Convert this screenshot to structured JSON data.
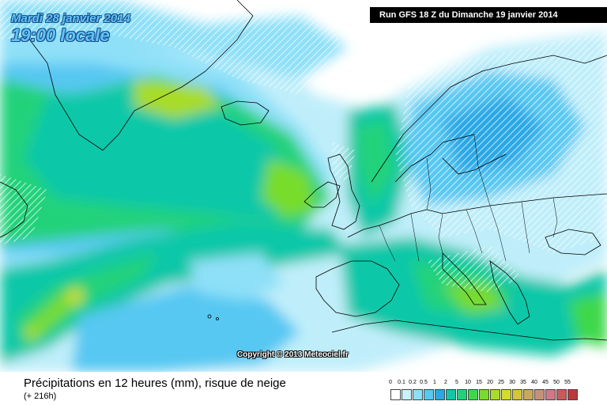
{
  "header": {
    "date": "Mardi 28 janvier 2014",
    "time": "19:00 locale",
    "run": "Run GFS 18 Z du Dimanche 19 janvier 2014"
  },
  "copyright": "Copyright © 2013 Meteociel.fr",
  "footer": {
    "title": "Précipitations en 12 heures (mm), risque de neige",
    "subtitle": "(+ 216h)"
  },
  "legend": {
    "labels": [
      "0",
      "0.1",
      "0.2",
      "0.5",
      "1",
      "2",
      "5",
      "10",
      "15",
      "20",
      "25",
      "30",
      "35",
      "40",
      "45",
      "50",
      "55"
    ],
    "colors": [
      "#ffffff",
      "#c9f3fb",
      "#8ee0f8",
      "#56c8f2",
      "#2aa8e6",
      "#10c8a8",
      "#22d27a",
      "#3cd848",
      "#78dc2c",
      "#a8dc28",
      "#d2dc2c",
      "#d6c43a",
      "#c8a85a",
      "#c89078",
      "#d07888",
      "#c85a5a",
      "#b83a3a"
    ]
  },
  "map": {
    "region": "Atlantique Nord / Europe"
  }
}
